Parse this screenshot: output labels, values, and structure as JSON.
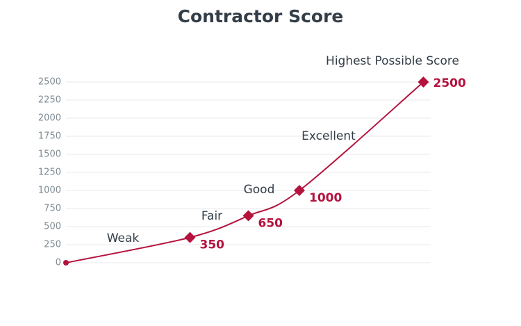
{
  "chart_data": {
    "type": "line",
    "title": "Contractor Score",
    "x": [
      0,
      34,
      50,
      64,
      98
    ],
    "xlim": [
      0,
      100
    ],
    "series": [
      {
        "name": "Contractor Score",
        "color": "#b5123e",
        "values": [
          0,
          350,
          650,
          1000,
          2500
        ],
        "markers": [
          "circle",
          "diamond",
          "diamond",
          "diamond",
          "diamond"
        ]
      }
    ],
    "ylim": [
      0,
      2500
    ],
    "yticks": [
      0,
      250,
      500,
      750,
      1000,
      1250,
      1500,
      1750,
      2000,
      2250,
      2500
    ],
    "grid": true,
    "annotations": [
      "Weak",
      "Fair",
      "Good",
      "Excellent",
      "Highest Possible Score"
    ]
  }
}
